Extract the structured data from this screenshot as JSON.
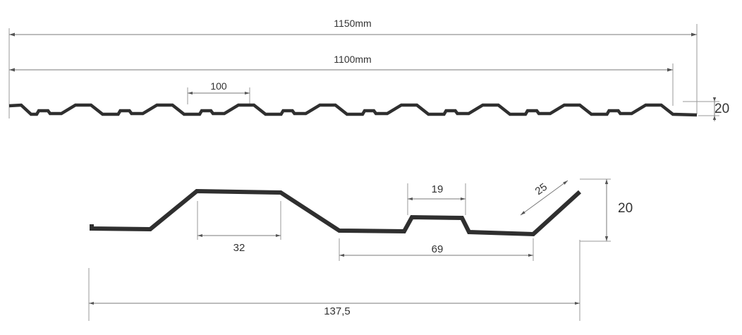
{
  "colors": {
    "profile": "#2f2f2f",
    "dimension": "#7a7a7a",
    "text": "#333333"
  },
  "overview": {
    "total_width_label": "1150mm",
    "cover_width_label": "1100mm",
    "pitch_label": "100",
    "height_label": "20"
  },
  "detail": {
    "top_flat_label": "32",
    "rib_top_label": "19",
    "slope_label": "25",
    "height_label": "20",
    "valley_label": "69",
    "module_label": "137,5"
  }
}
